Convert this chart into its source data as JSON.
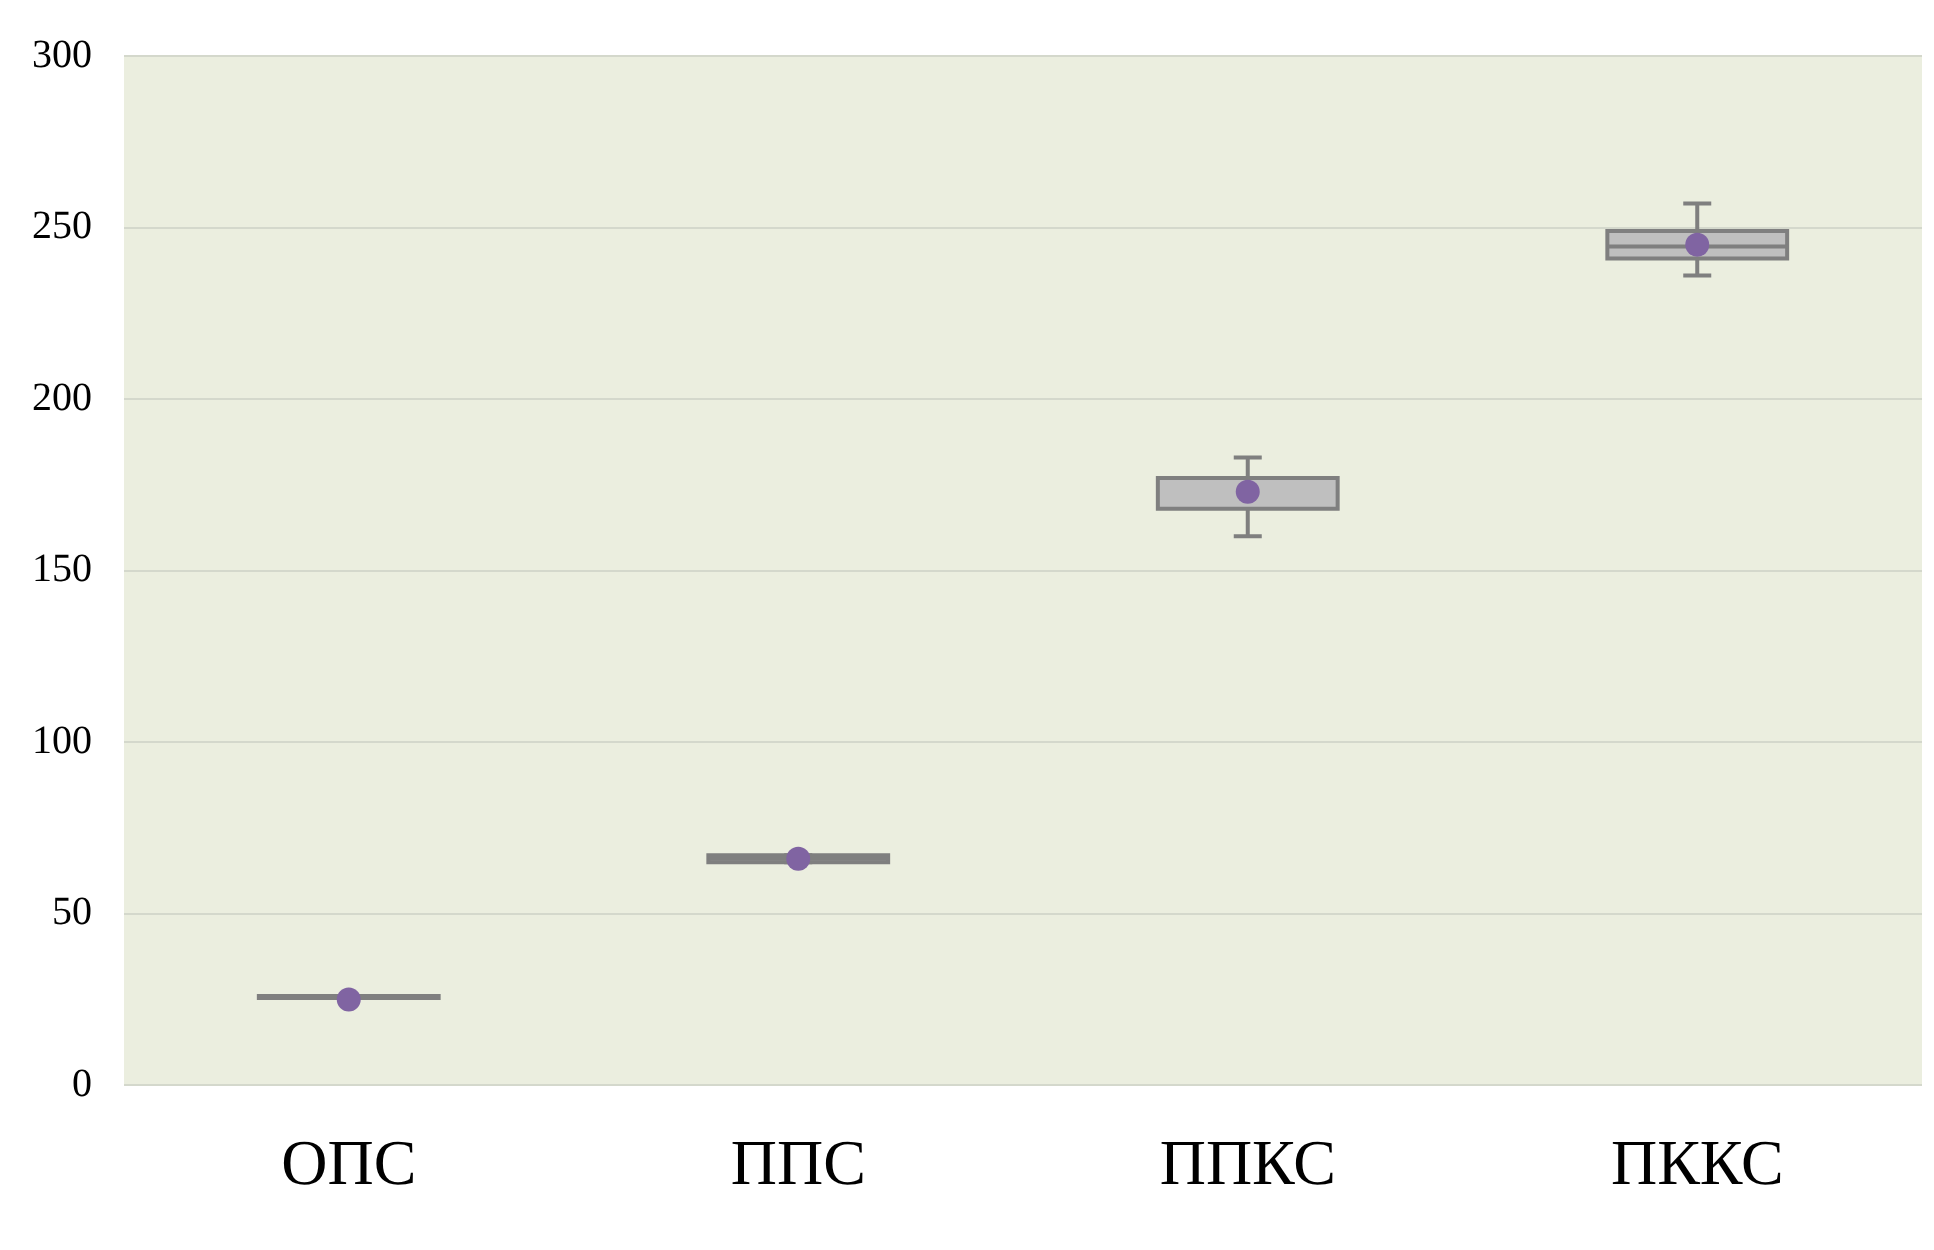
{
  "chart_data": {
    "type": "box",
    "categories": [
      "ОПС",
      "ППС",
      "ППКС",
      "ПККС"
    ],
    "series": [
      {
        "color": "#bfbfbf",
        "boxes": [
          {
            "low": 26,
            "q1": 26,
            "median": 26,
            "q3": 26,
            "high": 26
          },
          {
            "low": 65,
            "q1": 65,
            "median": 66,
            "q3": 67,
            "high": 67
          },
          {
            "low": 160,
            "q1": 168,
            "median": 177,
            "q3": 177,
            "high": 183
          },
          {
            "low": 236,
            "q1": 241,
            "median": 244.5,
            "q3": 249,
            "high": 257
          }
        ]
      },
      {
        "type": "scatter",
        "color": "#8064a2",
        "x": [
          "ОПС",
          "ППС",
          "ППКС",
          "ПККС"
        ],
        "values": [
          25,
          66,
          173,
          245
        ]
      }
    ],
    "ylim": [
      0,
      300
    ],
    "yticks": [
      0,
      50,
      100,
      150,
      200,
      250,
      300
    ],
    "grid": "y",
    "marker": "circle",
    "legend": false
  }
}
